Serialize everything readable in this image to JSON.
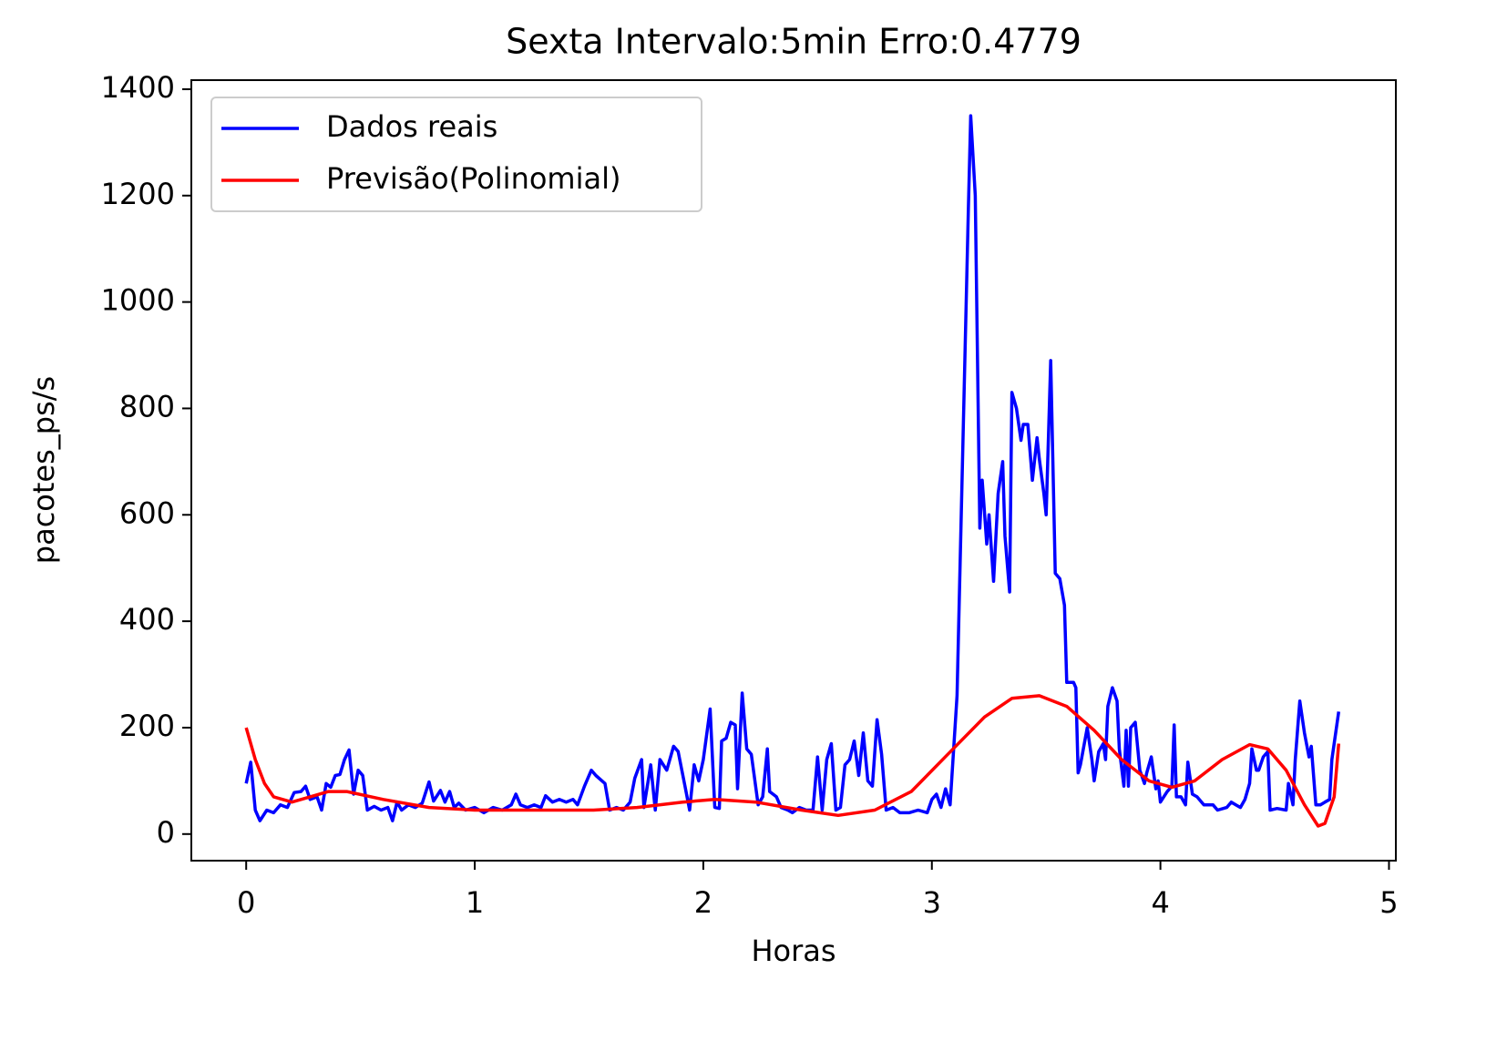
{
  "chart_data": {
    "type": "line",
    "title": "Sexta Intervalo:5min Erro:0.4779",
    "x_label": "Horas",
    "y_label": "pacotes_ps/s",
    "xlim": [
      -0.24,
      5.03
    ],
    "ylim": [
      -50,
      1417
    ],
    "xticks": [
      0,
      1,
      2,
      3,
      4,
      5
    ],
    "yticks": [
      0,
      200,
      400,
      600,
      800,
      1000,
      1200,
      1400
    ],
    "legend": "upper left",
    "series": [
      {
        "name": "Dados reais",
        "color": "#0000ff",
        "x": [
          0,
          0.02,
          0.04,
          0.06,
          0.09,
          0.12,
          0.15,
          0.18,
          0.21,
          0.24,
          0.26,
          0.28,
          0.31,
          0.33,
          0.35,
          0.37,
          0.39,
          0.41,
          0.43,
          0.45,
          0.47,
          0.49,
          0.51,
          0.53,
          0.56,
          0.59,
          0.62,
          0.64,
          0.66,
          0.68,
          0.71,
          0.74,
          0.77,
          0.8,
          0.82,
          0.85,
          0.87,
          0.89,
          0.91,
          0.93,
          0.96,
          1,
          1.04,
          1.08,
          1.12,
          1.16,
          1.18,
          1.2,
          1.23,
          1.26,
          1.29,
          1.31,
          1.34,
          1.37,
          1.4,
          1.43,
          1.45,
          1.48,
          1.51,
          1.53,
          1.57,
          1.59,
          1.62,
          1.65,
          1.68,
          1.7,
          1.73,
          1.74,
          1.77,
          1.79,
          1.81,
          1.84,
          1.87,
          1.89,
          1.92,
          1.94,
          1.96,
          1.98,
          2,
          2.03,
          2.05,
          2.07,
          2.08,
          2.1,
          2.12,
          2.14,
          2.15,
          2.17,
          2.19,
          2.21,
          2.24,
          2.26,
          2.28,
          2.29,
          2.32,
          2.34,
          2.37,
          2.39,
          2.42,
          2.45,
          2.48,
          2.5,
          2.52,
          2.54,
          2.56,
          2.58,
          2.6,
          2.62,
          2.64,
          2.66,
          2.68,
          2.7,
          2.72,
          2.74,
          2.76,
          2.78,
          2.8,
          2.83,
          2.86,
          2.9,
          2.94,
          2.98,
          3,
          3.02,
          3.04,
          3.06,
          3.08,
          3.11,
          3.16,
          3.17,
          3.19,
          3.21,
          3.22,
          3.24,
          3.25,
          3.27,
          3.29,
          3.31,
          3.32,
          3.34,
          3.35,
          3.37,
          3.39,
          3.4,
          3.42,
          3.44,
          3.46,
          3.47,
          3.49,
          3.5,
          3.52,
          3.54,
          3.56,
          3.58,
          3.59,
          3.62,
          3.63,
          3.64,
          3.65,
          3.68,
          3.7,
          3.71,
          3.73,
          3.75,
          3.76,
          3.77,
          3.79,
          3.81,
          3.82,
          3.84,
          3.85,
          3.86,
          3.87,
          3.89,
          3.91,
          3.93,
          3.94,
          3.96,
          3.98,
          3.99,
          4,
          4.03,
          4.05,
          4.06,
          4.07,
          4.09,
          4.11,
          4.12,
          4.14,
          4.16,
          4.19,
          4.23,
          4.25,
          4.29,
          4.31,
          4.33,
          4.35,
          4.37,
          4.39,
          4.4,
          4.42,
          4.43,
          4.45,
          4.47,
          4.48,
          4.51,
          4.55,
          4.56,
          4.58,
          4.59,
          4.61,
          4.63,
          4.65,
          4.66,
          4.68,
          4.7,
          4.72,
          4.74,
          4.75,
          4.78
        ],
        "values": [
          95,
          135,
          45,
          25,
          45,
          40,
          55,
          50,
          78,
          80,
          90,
          65,
          70,
          45,
          95,
          88,
          110,
          112,
          140,
          158,
          75,
          120,
          110,
          45,
          52,
          45,
          50,
          25,
          60,
          45,
          55,
          50,
          58,
          98,
          62,
          82,
          60,
          80,
          50,
          58,
          45,
          50,
          40,
          50,
          45,
          55,
          75,
          55,
          50,
          55,
          50,
          72,
          60,
          65,
          60,
          65,
          55,
          90,
          120,
          110,
          95,
          45,
          50,
          45,
          60,
          105,
          140,
          50,
          130,
          45,
          140,
          120,
          165,
          155,
          90,
          45,
          130,
          100,
          140,
          235,
          50,
          48,
          175,
          180,
          210,
          205,
          85,
          265,
          160,
          150,
          55,
          70,
          160,
          80,
          70,
          50,
          45,
          40,
          50,
          45,
          45,
          145,
          45,
          140,
          170,
          45,
          50,
          130,
          140,
          175,
          110,
          190,
          100,
          90,
          215,
          150,
          45,
          50,
          40,
          40,
          45,
          40,
          65,
          75,
          50,
          85,
          55,
          260,
          1180,
          1350,
          1200,
          575,
          665,
          545,
          600,
          475,
          640,
          700,
          560,
          455,
          830,
          800,
          740,
          770,
          770,
          665,
          745,
          705,
          640,
          600,
          890,
          490,
          480,
          430,
          285,
          285,
          275,
          115,
          130,
          200,
          140,
          100,
          155,
          170,
          140,
          240,
          275,
          250,
          160,
          90,
          195,
          90,
          200,
          210,
          120,
          95,
          115,
          145,
          85,
          100,
          60,
          80,
          90,
          205,
          70,
          70,
          55,
          135,
          75,
          70,
          55,
          55,
          45,
          50,
          60,
          55,
          50,
          65,
          95,
          160,
          120,
          120,
          145,
          155,
          45,
          48,
          45,
          95,
          55,
          140,
          250,
          190,
          145,
          165,
          55,
          55,
          60,
          65,
          140,
          230
        ]
      },
      {
        "name": "Previsão(Polinomial)",
        "color": "#ff0000",
        "x": [
          0,
          0.04,
          0.08,
          0.12,
          0.2,
          0.28,
          0.36,
          0.44,
          0.6,
          0.8,
          1,
          1.32,
          1.52,
          1.71,
          1.91,
          2.05,
          2.23,
          2.43,
          2.59,
          2.75,
          2.91,
          3.07,
          3.23,
          3.35,
          3.47,
          3.59,
          3.71,
          3.83,
          3.95,
          4.05,
          4.15,
          4.27,
          4.39,
          4.47,
          4.55,
          4.63,
          4.69,
          4.72,
          4.76,
          4.78
        ],
        "values": [
          200,
          140,
          95,
          70,
          60,
          70,
          80,
          80,
          65,
          50,
          45,
          45,
          45,
          50,
          60,
          65,
          60,
          45,
          35,
          45,
          80,
          150,
          220,
          255,
          260,
          240,
          195,
          140,
          100,
          88,
          100,
          140,
          168,
          160,
          120,
          55,
          15,
          20,
          70,
          170
        ]
      }
    ]
  }
}
